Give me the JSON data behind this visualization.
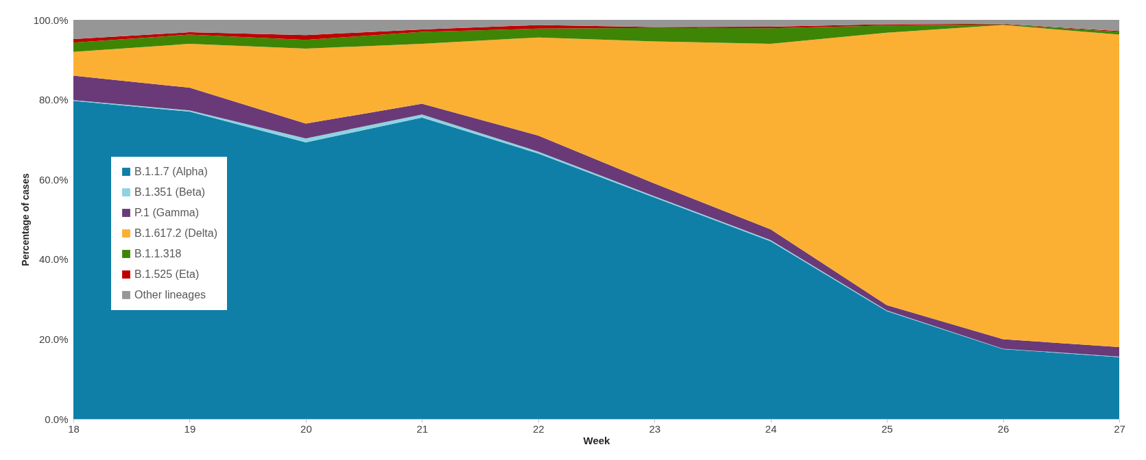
{
  "chart_data": {
    "type": "area",
    "stacked": true,
    "xlabel": "Week",
    "ylabel": "Percentage of cases",
    "x": [
      18,
      19,
      20,
      21,
      22,
      23,
      24,
      25,
      26,
      27
    ],
    "xlim": [
      18,
      27
    ],
    "xticks": [
      18,
      19,
      20,
      21,
      22,
      23,
      24,
      25,
      26,
      27
    ],
    "ylim": [
      0,
      100
    ],
    "yticks": [
      {
        "value": 0,
        "label": "0.0%"
      },
      {
        "value": 20,
        "label": "20.0%"
      },
      {
        "value": 40,
        "label": "40.0%"
      },
      {
        "value": 60,
        "label": "60.0%"
      },
      {
        "value": 80,
        "label": "80.0%"
      },
      {
        "value": 100,
        "label": "100.0%"
      }
    ],
    "grid": false,
    "legend": "left",
    "series": [
      {
        "name": "B.1.1.7 (Alpha)",
        "color": "#0f7fa8",
        "values": [
          79.7,
          77,
          69.3,
          75.5,
          66.5,
          55.5,
          44.5,
          27,
          17.5,
          15.5
        ]
      },
      {
        "name": "B.1.351 (Beta)",
        "color": "#8dd3e0",
        "values": [
          0.2,
          0.3,
          1.0,
          0.8,
          0.5,
          0.3,
          0.3,
          0.2,
          0.1,
          0.1
        ]
      },
      {
        "name": "P.1 (Gamma)",
        "color": "#6a3a78",
        "values": [
          6.1,
          5.7,
          3.7,
          2.7,
          4,
          3.2,
          2.7,
          1.3,
          2.4,
          2.4
        ]
      },
      {
        "name": "B.1.617.2 (Delta)",
        "color": "#fbb034",
        "values": [
          6,
          11,
          18.8,
          15,
          24.6,
          35.6,
          46.5,
          68.3,
          78.7,
          78.3
        ]
      },
      {
        "name": "B.1.1.318",
        "color": "#3e8506",
        "values": [
          2.3,
          2.3,
          2.2,
          3,
          2.2,
          3.4,
          3.9,
          1.8,
          0.2,
          0.7
        ]
      },
      {
        "name": "B.1.525 (Eta)",
        "color": "#c00000",
        "values": [
          0.9,
          0.6,
          1.2,
          0.6,
          0.9,
          0.2,
          0.4,
          0.3,
          0.1,
          0.2
        ]
      },
      {
        "name": "Other lineages",
        "color": "#969696",
        "values": [
          4.8,
          3.1,
          3.8,
          2.4,
          1.3,
          1.8,
          1.7,
          1.1,
          1.0,
          2.8
        ]
      }
    ]
  }
}
